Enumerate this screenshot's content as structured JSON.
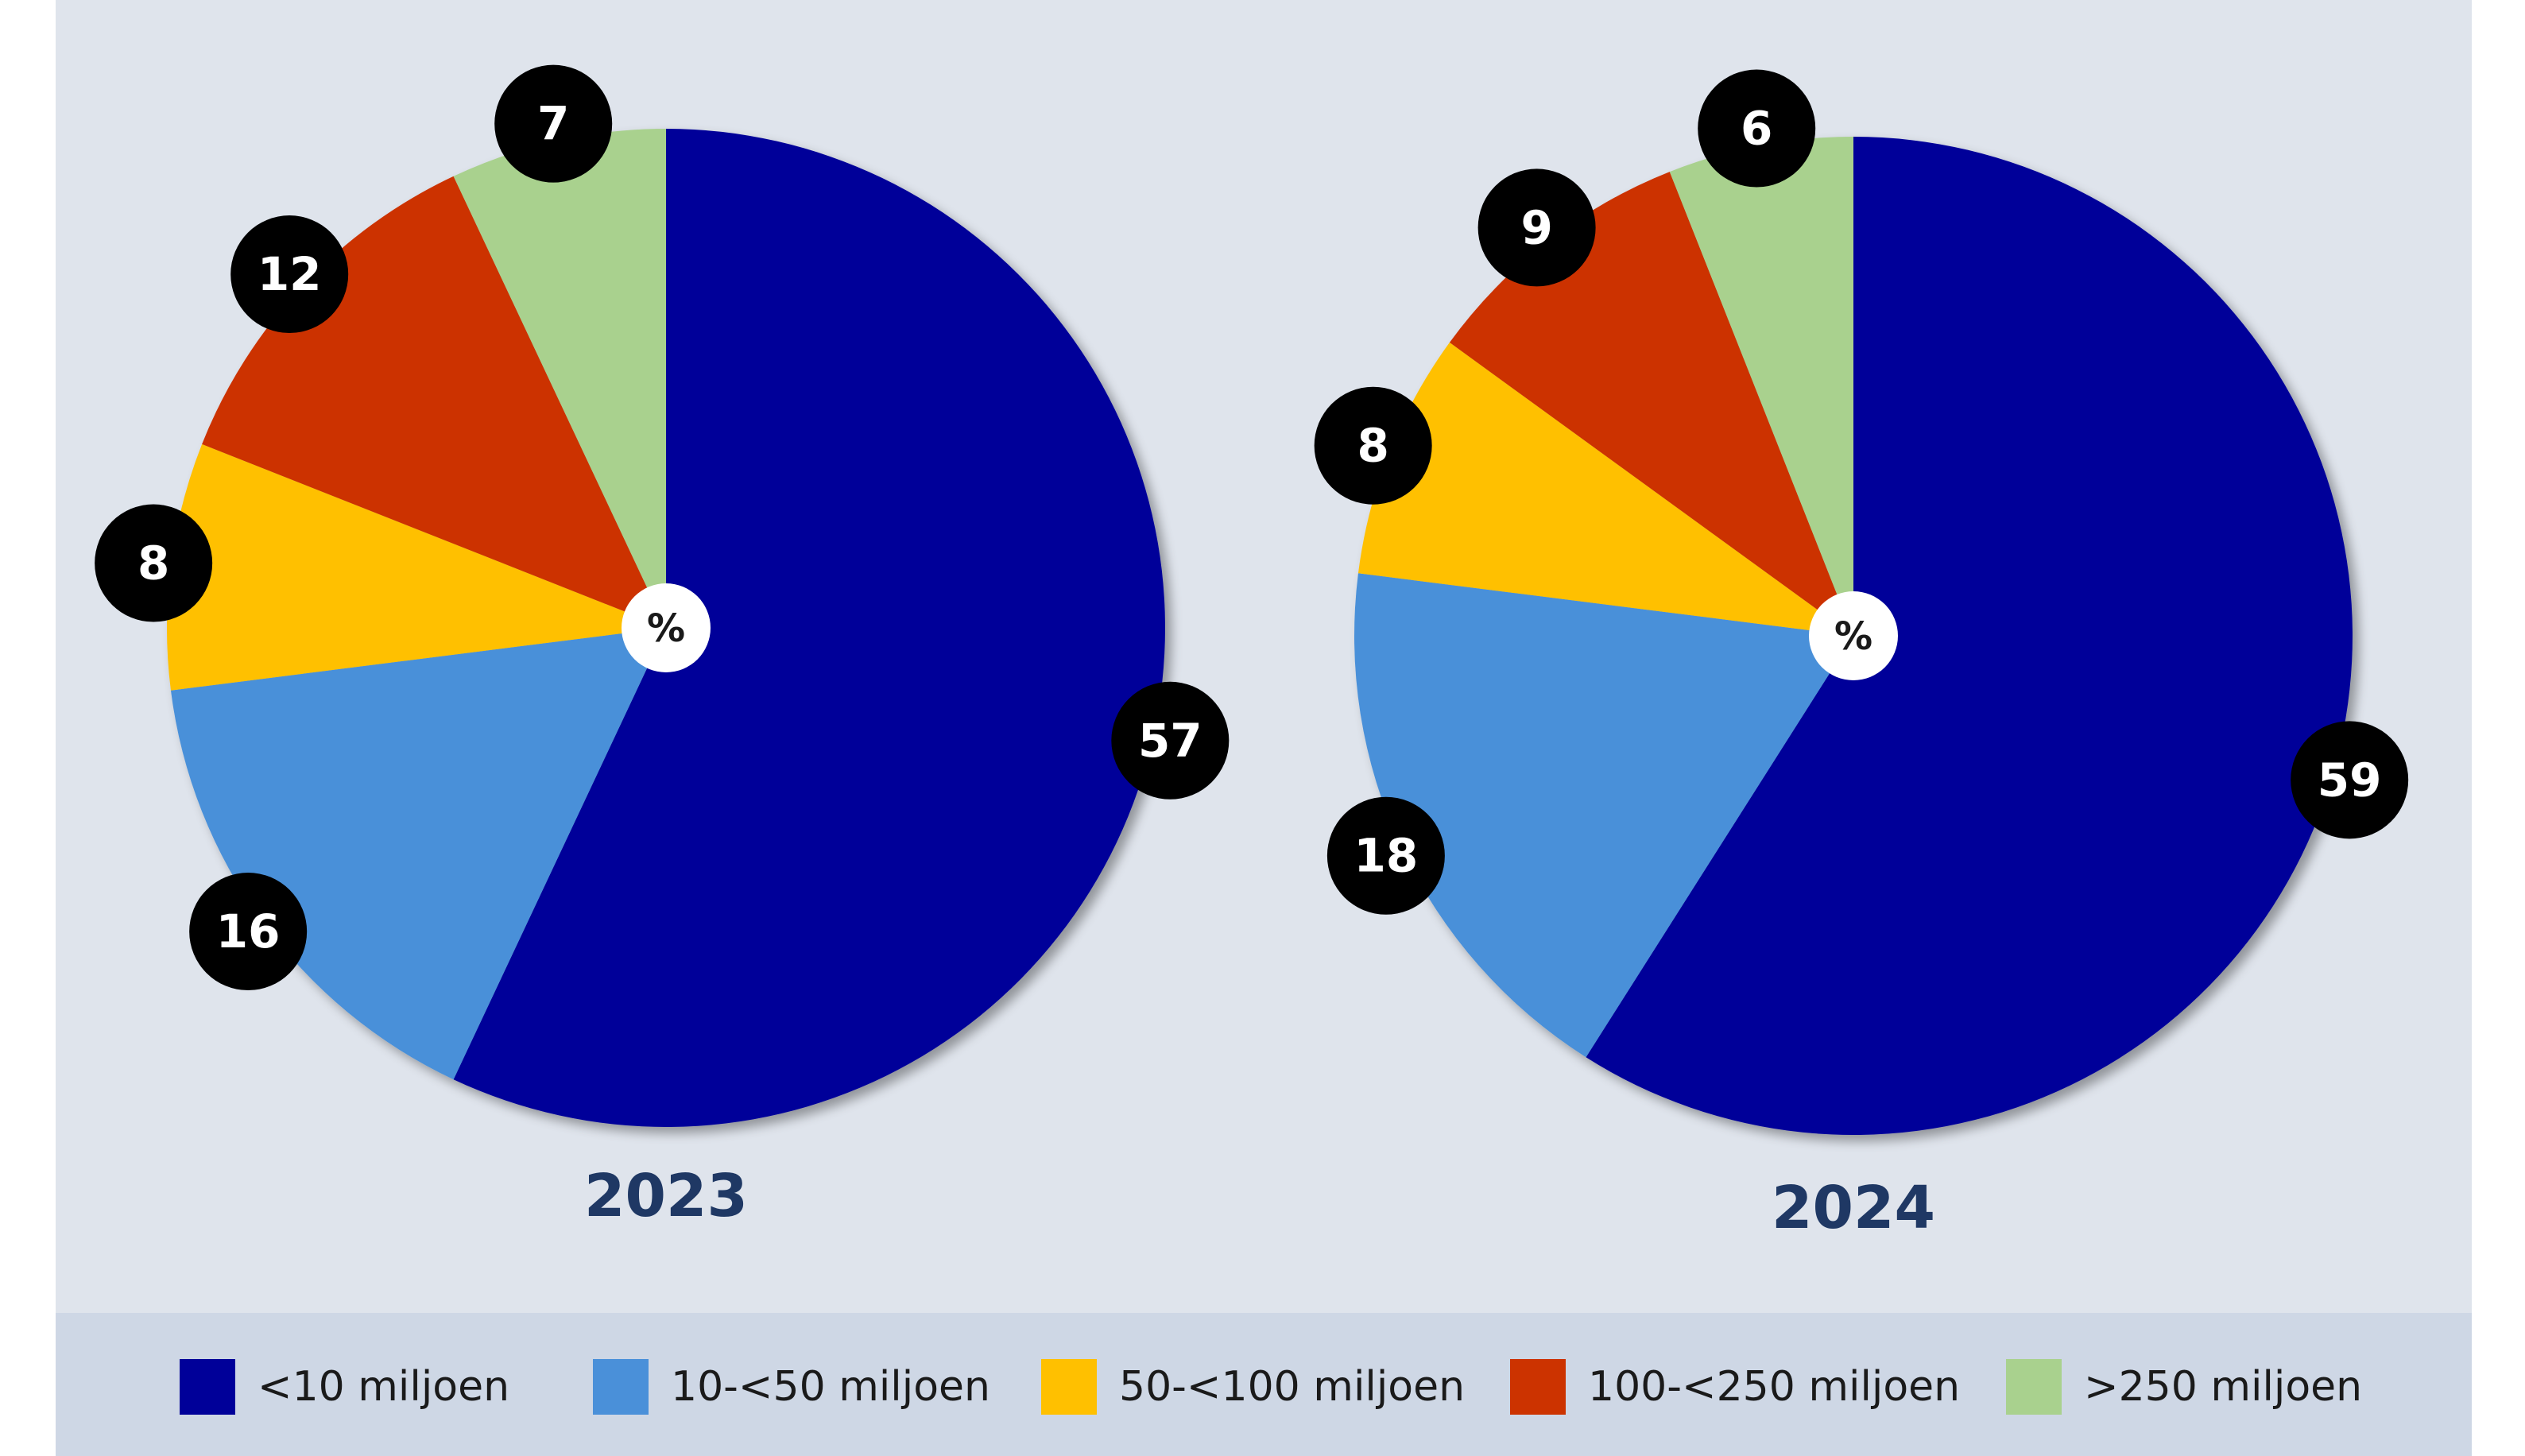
{
  "chart_data": [
    {
      "type": "pie",
      "title": "2023",
      "center_label": "%",
      "categories": [
        "<10 miljoen",
        "10-<50 miljoen",
        "50-<100 miljoen",
        "100-<250 miljoen",
        ">250 miljoen"
      ],
      "values": [
        57,
        16,
        8,
        12,
        7
      ]
    },
    {
      "type": "pie",
      "title": "2024",
      "center_label": "%",
      "categories": [
        "<10 miljoen",
        "10-<50 miljoen",
        "50-<100 miljoen",
        "100-<250 miljoen",
        ">250 miljoen"
      ],
      "values": [
        59,
        18,
        8,
        9,
        6
      ]
    }
  ],
  "legend": {
    "placement": "bottom",
    "items": [
      {
        "label": "<10 miljoen",
        "color": "#000099"
      },
      {
        "label": "10-<50 miljoen",
        "color": "#4a90d9"
      },
      {
        "label": "50-<100 miljoen",
        "color": "#ffc000"
      },
      {
        "label": "100-<250 miljoen",
        "color": "#cc3300"
      },
      {
        "label": ">250 miljoen",
        "color": "#a9d18e"
      }
    ]
  },
  "colors": {
    "plot_background": "#dfe4ec",
    "legend_background": "#ced7e5",
    "label_circle": "#000000",
    "year_text": "#1f3864"
  }
}
